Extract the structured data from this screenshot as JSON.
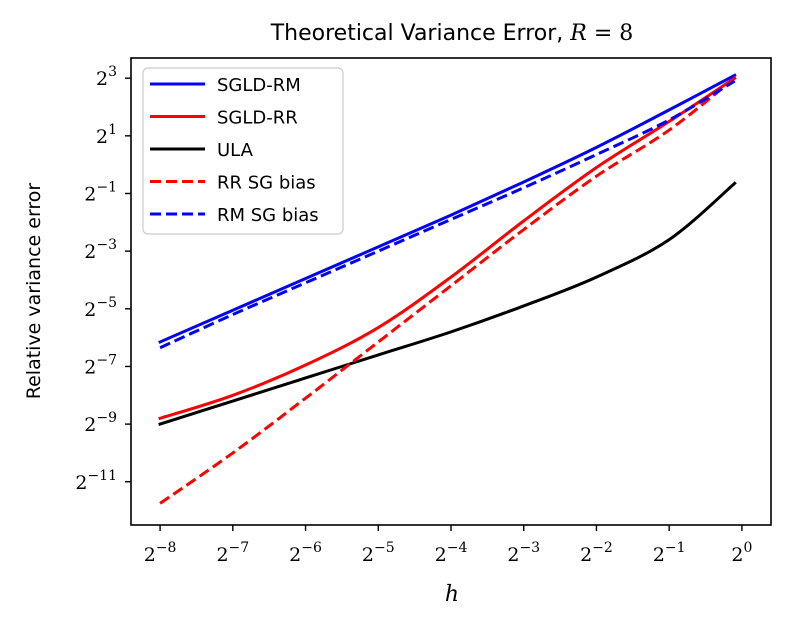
{
  "chart_data": {
    "type": "line",
    "title_text": "Theoretical Variance Error, ",
    "title_math_var": "R",
    "title_math_rest": " = 8",
    "xlabel": "h",
    "ylabel": "Relative variance error",
    "x_scale": "log2",
    "y_scale": "log2",
    "xlim_exp": [
      -8.4,
      0.4
    ],
    "ylim_exp": [
      -12.5,
      3.7
    ],
    "x_ticks": [
      {
        "base": "2",
        "exp": "−8",
        "value_exp": -8
      },
      {
        "base": "2",
        "exp": "−7",
        "value_exp": -7
      },
      {
        "base": "2",
        "exp": "−6",
        "value_exp": -6
      },
      {
        "base": "2",
        "exp": "−5",
        "value_exp": -5
      },
      {
        "base": "2",
        "exp": "−4",
        "value_exp": -4
      },
      {
        "base": "2",
        "exp": "−3",
        "value_exp": -3
      },
      {
        "base": "2",
        "exp": "−2",
        "value_exp": -2
      },
      {
        "base": "2",
        "exp": "−1",
        "value_exp": -1
      },
      {
        "base": "2",
        "exp": "0",
        "value_exp": 0
      }
    ],
    "y_ticks": [
      {
        "base": "2",
        "exp": "3",
        "value_exp": 3
      },
      {
        "base": "2",
        "exp": "1",
        "value_exp": 1
      },
      {
        "base": "2",
        "exp": "−1",
        "value_exp": -1
      },
      {
        "base": "2",
        "exp": "−3",
        "value_exp": -3
      },
      {
        "base": "2",
        "exp": "−5",
        "value_exp": -5
      },
      {
        "base": "2",
        "exp": "−7",
        "value_exp": -7
      },
      {
        "base": "2",
        "exp": "−9",
        "value_exp": -9
      },
      {
        "base": "2",
        "exp": "−11",
        "value_exp": -11
      }
    ],
    "legend_position": "top-left",
    "series": [
      {
        "name": "SGLD-RM",
        "color": "#0000ff",
        "style": "solid",
        "x_exp": [
          -8,
          -7,
          -6,
          -5,
          -4,
          -3,
          -2,
          -1,
          -0.1
        ],
        "y_exp": [
          -6.15,
          -5.05,
          -3.95,
          -2.85,
          -1.75,
          -0.6,
          0.6,
          1.9,
          3.1
        ]
      },
      {
        "name": "SGLD-RR",
        "color": "#ff0000",
        "style": "solid",
        "x_exp": [
          -8,
          -7,
          -6,
          -5,
          -4,
          -3,
          -2,
          -1,
          -0.1
        ],
        "y_exp": [
          -8.8,
          -8.0,
          -6.95,
          -5.65,
          -3.9,
          -1.95,
          -0.1,
          1.5,
          3.0
        ]
      },
      {
        "name": "ULA",
        "color": "#000000",
        "style": "solid",
        "x_exp": [
          -8,
          -7,
          -6,
          -5,
          -4,
          -3,
          -2,
          -1,
          -0.1
        ],
        "y_exp": [
          -9.0,
          -8.2,
          -7.4,
          -6.6,
          -5.8,
          -4.9,
          -3.9,
          -2.6,
          -0.65
        ]
      },
      {
        "name": "RR SG bias",
        "color": "#ff0000",
        "style": "dashed",
        "x_exp": [
          -8,
          -7,
          -6,
          -5,
          -4,
          -3,
          -2,
          -1,
          -0.1
        ],
        "y_exp": [
          -11.75,
          -10.0,
          -8.1,
          -6.15,
          -4.2,
          -2.25,
          -0.4,
          1.2,
          3.0
        ]
      },
      {
        "name": "RM SG bias",
        "color": "#0000ff",
        "style": "dashed",
        "x_exp": [
          -8,
          -7,
          -6,
          -5,
          -4,
          -3,
          -2,
          -1,
          -0.1
        ],
        "y_exp": [
          -6.35,
          -5.2,
          -4.1,
          -3.0,
          -1.9,
          -0.8,
          0.35,
          1.55,
          2.9
        ]
      }
    ]
  }
}
